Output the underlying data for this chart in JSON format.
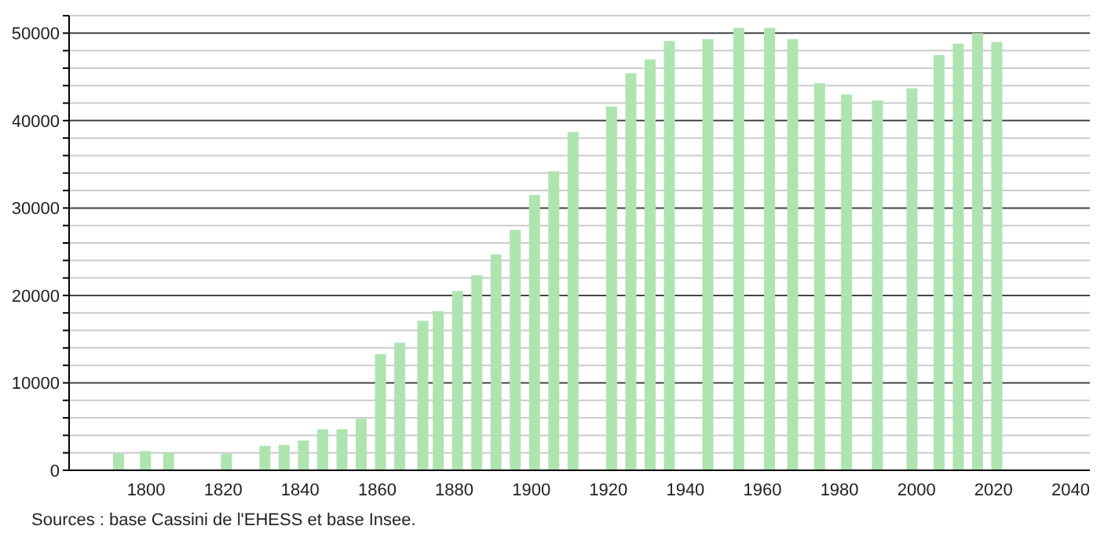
{
  "chart_data": {
    "type": "bar",
    "x": [
      1793,
      1800,
      1806,
      1821,
      1831,
      1836,
      1841,
      1846,
      1851,
      1856,
      1861,
      1866,
      1872,
      1876,
      1881,
      1886,
      1891,
      1896,
      1901,
      1906,
      1911,
      1921,
      1926,
      1931,
      1936,
      1946,
      1954,
      1962,
      1968,
      1975,
      1982,
      1990,
      1999,
      2006,
      2011,
      2016,
      2021
    ],
    "values": [
      1900,
      2200,
      2000,
      1900,
      2800,
      2900,
      3400,
      4700,
      4700,
      5900,
      13300,
      14600,
      17100,
      18200,
      20500,
      22300,
      24700,
      27500,
      31500,
      34200,
      38700,
      41600,
      45400,
      47000,
      49100,
      49300,
      50600,
      50600,
      49300,
      44300,
      43000,
      42300,
      43700,
      47500,
      48800,
      50000,
      49000
    ],
    "color": "#aee4b0",
    "xlim": [
      1780,
      2045
    ],
    "xticks": [
      1800,
      1820,
      1840,
      1860,
      1880,
      1900,
      1920,
      1940,
      1960,
      1980,
      2000,
      2020,
      2040
    ],
    "ylim": [
      0,
      52000
    ],
    "yticks": [
      0,
      {
        "value": 2000,
        "label": null
      },
      {
        "value": 4000,
        "label": null
      },
      {
        "value": 6000,
        "label": null
      },
      {
        "value": 8000,
        "label": null
      },
      10000,
      {
        "value": 12000,
        "label": null
      },
      {
        "value": 14000,
        "label": null
      },
      {
        "value": 16000,
        "label": null
      },
      {
        "value": 18000,
        "label": null
      },
      20000,
      {
        "value": 22000,
        "label": null
      },
      {
        "value": 24000,
        "label": null
      },
      {
        "value": 26000,
        "label": null
      },
      {
        "value": 28000,
        "label": null
      },
      30000,
      {
        "value": 32000,
        "label": null
      },
      {
        "value": 34000,
        "label": null
      },
      {
        "value": 36000,
        "label": null
      },
      {
        "value": 38000,
        "label": null
      },
      40000,
      {
        "value": 42000,
        "label": null
      },
      {
        "value": 44000,
        "label": null
      },
      {
        "value": 46000,
        "label": null
      },
      {
        "value": 48000,
        "label": null
      },
      50000,
      {
        "value": 52000,
        "label": null
      }
    ],
    "grid": "y",
    "legend": false,
    "annotations": [
      "Sources : base Cassini de l'EHESS et base Insee."
    ]
  }
}
